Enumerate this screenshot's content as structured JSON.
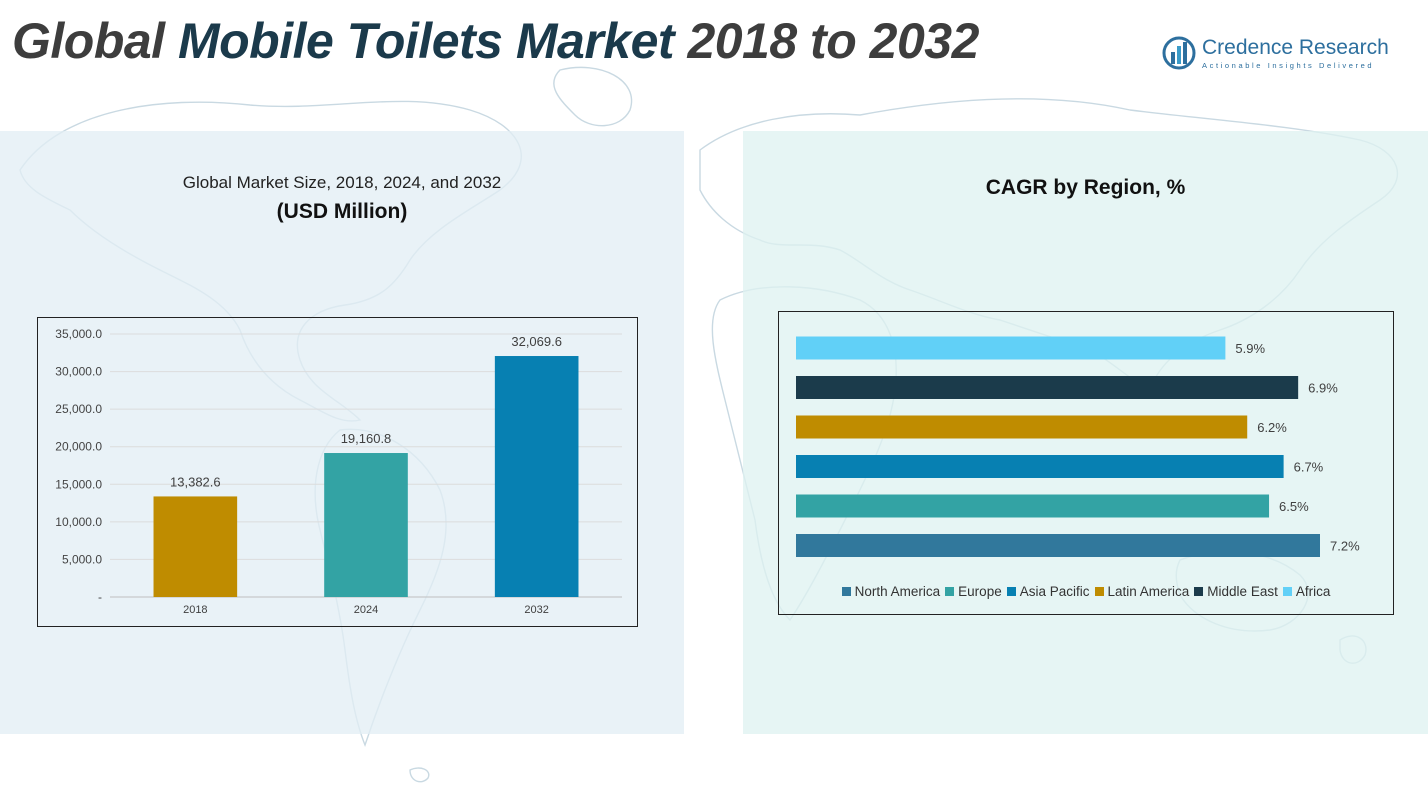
{
  "page": {
    "title_start": "Global ",
    "title_accent": "Mobile Toilets Market",
    "title_end": " 2018 to 2032"
  },
  "logo": {
    "name": "Credence Research",
    "tagline": "Actionable Insights Delivered"
  },
  "left_panel": {
    "title": "Global Market Size, 2018, 2024, and 2032",
    "subtitle": "(USD Million)"
  },
  "right_panel": {
    "title": "CAGR by Region, %"
  },
  "colors": {
    "gold": "#bf8c00",
    "teal": "#33a3a4",
    "blue": "#0780b2",
    "steel": "#31789c",
    "navy": "#1b3b4b",
    "sky": "#61d0f7"
  },
  "chart_data": [
    {
      "type": "bar",
      "categories": [
        "2018",
        "2024",
        "2032"
      ],
      "values": [
        13382.6,
        19160.8,
        32069.6
      ],
      "value_labels": [
        "13,382.6",
        "19,160.8",
        "32,069.6"
      ],
      "bar_colors": [
        "#bf8c00",
        "#33a3a4",
        "#0780b2"
      ],
      "title": "Global Market Size, 2018, 2024, and 2032",
      "subtitle": "(USD Million)",
      "ylim": [
        0,
        35000
      ],
      "yticks": [
        0,
        5000,
        10000,
        15000,
        20000,
        25000,
        30000,
        35000
      ],
      "ytick_labels": [
        "-",
        "5,000.0",
        "10,000.0",
        "15,000.0",
        "20,000.0",
        "25,000.0",
        "30,000.0",
        "35,000.0"
      ],
      "grid": true
    },
    {
      "type": "bar",
      "orientation": "horizontal",
      "title": "CAGR by Region, %",
      "categories": [
        "North America",
        "Europe",
        "Asia Pacific",
        "Latin America",
        "Middle East",
        "Africa"
      ],
      "values": [
        7.2,
        6.5,
        6.7,
        6.2,
        6.9,
        5.9
      ],
      "value_labels": [
        "7.2%",
        "6.5%",
        "6.7%",
        "6.2%",
        "6.9%",
        "5.9%"
      ],
      "bar_colors": [
        "#31789c",
        "#33a3a4",
        "#0780b2",
        "#bf8c00",
        "#1b3b4b",
        "#61d0f7"
      ],
      "xlim": [
        0,
        7.2
      ],
      "grid": false,
      "legend": "bottom"
    }
  ]
}
